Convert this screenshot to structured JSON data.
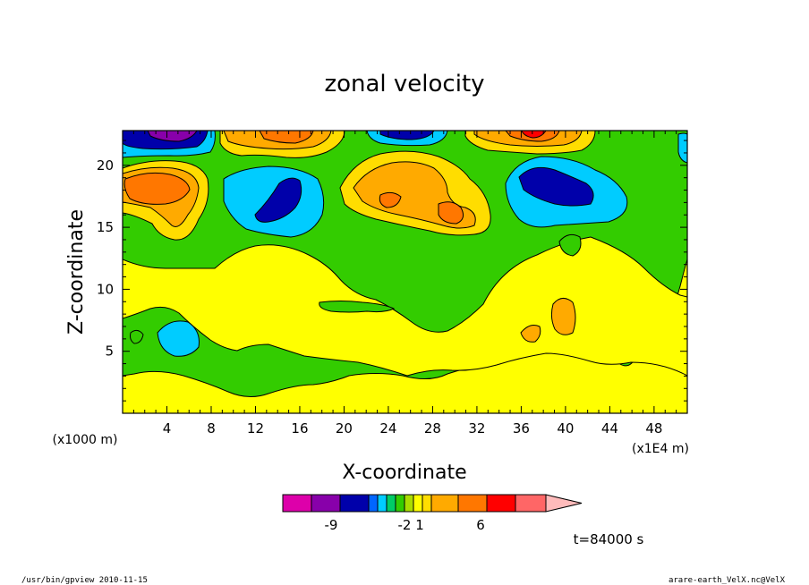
{
  "chart_data": {
    "type": "heatmap",
    "title": "zonal velocity",
    "xlabel": "X-coordinate",
    "ylabel": "Z-coordinate",
    "x_unit": "(x1E4 m)",
    "y_unit": "(x1000 m)",
    "xlim": [
      0,
      51
    ],
    "ylim": [
      0,
      22.8
    ],
    "x_ticks": [
      "4",
      "8",
      "12",
      "16",
      "20",
      "24",
      "28",
      "32",
      "36",
      "40",
      "44",
      "48"
    ],
    "y_ticks": [
      "5",
      "10",
      "15",
      "20"
    ],
    "colorbar": {
      "colors": [
        "#dd00aa",
        "#8800aa",
        "#0000aa",
        "#0066ff",
        "#00ccff",
        "#00cc66",
        "#33cc00",
        "#aadd00",
        "#ffff00",
        "#ffdd00",
        "#ffaa00",
        "#ff7700",
        "#ff0000",
        "#ff6666",
        "#ffbbbb"
      ],
      "labels": [
        "-9",
        "-2",
        "1",
        "6"
      ]
    },
    "negative_cores": [
      {
        "x": 4,
        "z": 21.5,
        "level": -9
      },
      {
        "x": 14.5,
        "z": 18.5,
        "level": -4
      },
      {
        "x": 25.5,
        "z": 21.5,
        "level": -4
      },
      {
        "x": 37.5,
        "z": 19,
        "level": -5
      },
      {
        "x": 40,
        "z": 18,
        "level": -5
      },
      {
        "x": 5,
        "z": 6.5,
        "level": -1
      }
    ],
    "positive_cores": [
      {
        "x": 3.5,
        "z": 18.5,
        "level": 5
      },
      {
        "x": 14.5,
        "z": 22,
        "level": 5
      },
      {
        "x": 26.5,
        "z": 19,
        "level": 4
      },
      {
        "x": 29,
        "z": 16.5,
        "level": 4
      },
      {
        "x": 36.5,
        "z": 22.3,
        "level": 6
      },
      {
        "x": 40,
        "z": 8,
        "level": 3
      },
      {
        "x": 37,
        "z": 6.5,
        "level": 3
      }
    ]
  },
  "time_label": "t=84000 s",
  "footer": {
    "left": "/usr/bin/gpview   2010-11-15",
    "right": "arare-earth_VelX.nc@VelX"
  }
}
